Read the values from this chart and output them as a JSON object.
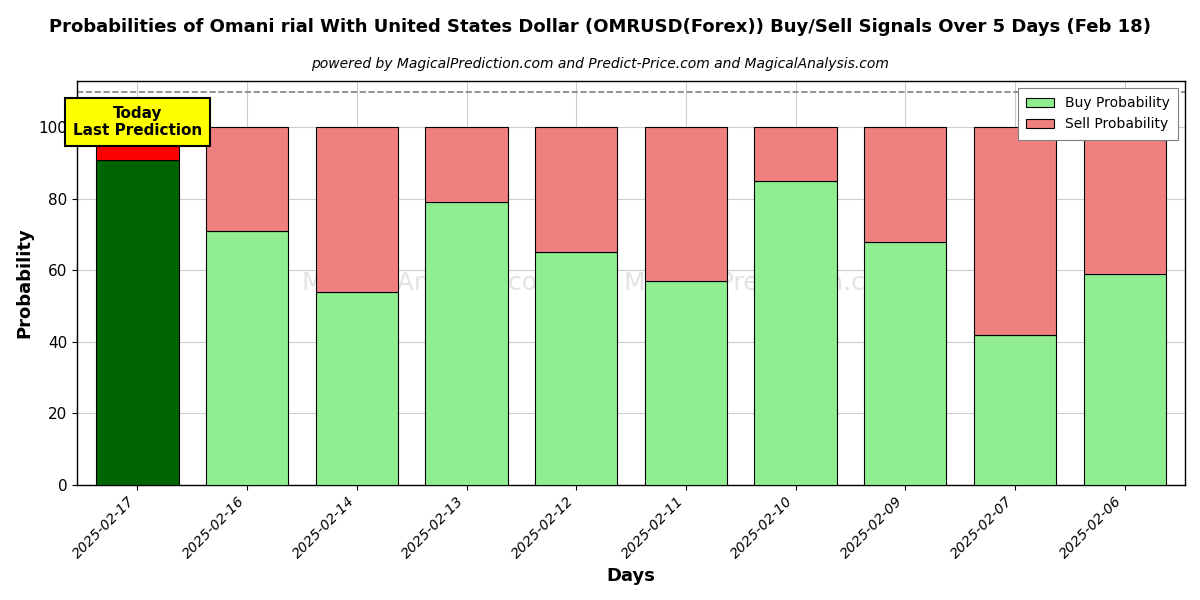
{
  "title": "Probabilities of Omani rial With United States Dollar (OMRUSD(Forex)) Buy/Sell Signals Over 5 Days (Feb 18)",
  "subtitle": "powered by MagicalPrediction.com and Predict-Price.com and MagicalAnalysis.com",
  "xlabel": "Days",
  "ylabel": "Probability",
  "categories": [
    "2025-02-17",
    "2025-02-16",
    "2025-02-14",
    "2025-02-13",
    "2025-02-12",
    "2025-02-11",
    "2025-02-10",
    "2025-02-09",
    "2025-02-07",
    "2025-02-06"
  ],
  "buy_values": [
    91,
    71,
    54,
    79,
    65,
    57,
    85,
    68,
    42,
    59
  ],
  "sell_values": [
    9,
    29,
    46,
    21,
    35,
    43,
    15,
    32,
    58,
    41
  ],
  "today_buy_color": "#006400",
  "today_sell_color": "#ff0000",
  "buy_color": "#90EE90",
  "sell_color": "#F08080",
  "today_label_bg": "#ffff00",
  "today_label_text": "Today\nLast Prediction",
  "legend_buy": "Buy Probability",
  "legend_sell": "Sell Probability",
  "ylim_min": 0,
  "ylim_max": 113,
  "yticks": [
    0,
    20,
    40,
    60,
    80,
    100
  ],
  "dashed_line_y": 110,
  "background_color": "#ffffff",
  "grid_color": "#cccccc",
  "bar_edge_color": "#000000",
  "bar_width": 0.75
}
